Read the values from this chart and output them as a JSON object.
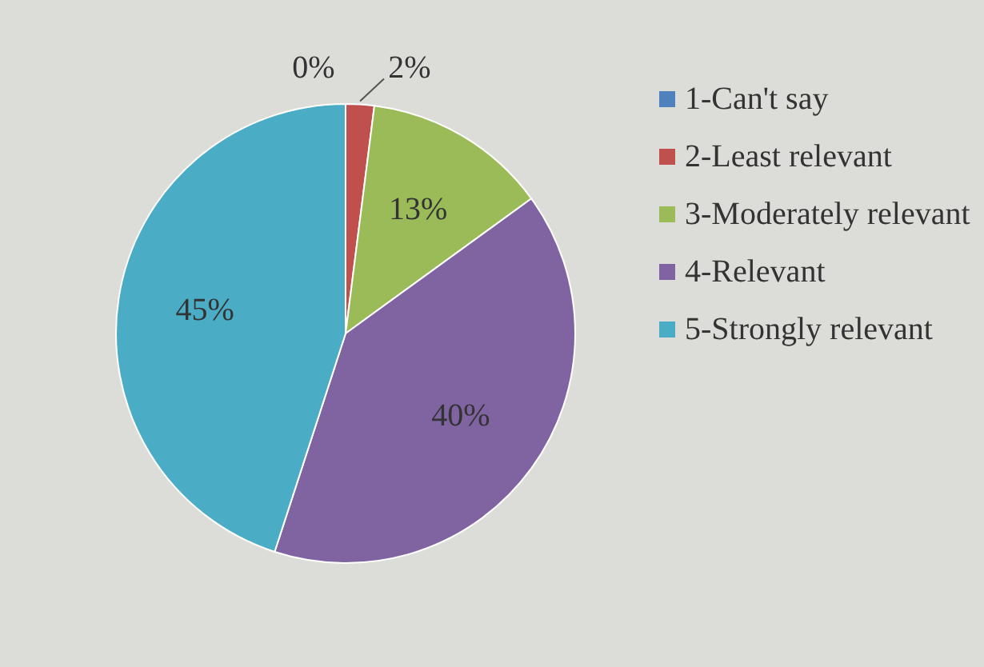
{
  "chart_data": {
    "type": "pie",
    "categories": [
      "1-Can't say",
      "2-Least relevant",
      "3-Moderately relevant",
      "4-Relevant",
      "5-Strongly relevant"
    ],
    "values": [
      0,
      2,
      13,
      40,
      45
    ],
    "colors": [
      "#4f81bd",
      "#c0504d",
      "#9bbb59",
      "#8064a2",
      "#4bacc6"
    ],
    "value_labels": [
      "0%",
      "2%",
      "13%",
      "40%",
      "45%"
    ],
    "legend": "right"
  }
}
